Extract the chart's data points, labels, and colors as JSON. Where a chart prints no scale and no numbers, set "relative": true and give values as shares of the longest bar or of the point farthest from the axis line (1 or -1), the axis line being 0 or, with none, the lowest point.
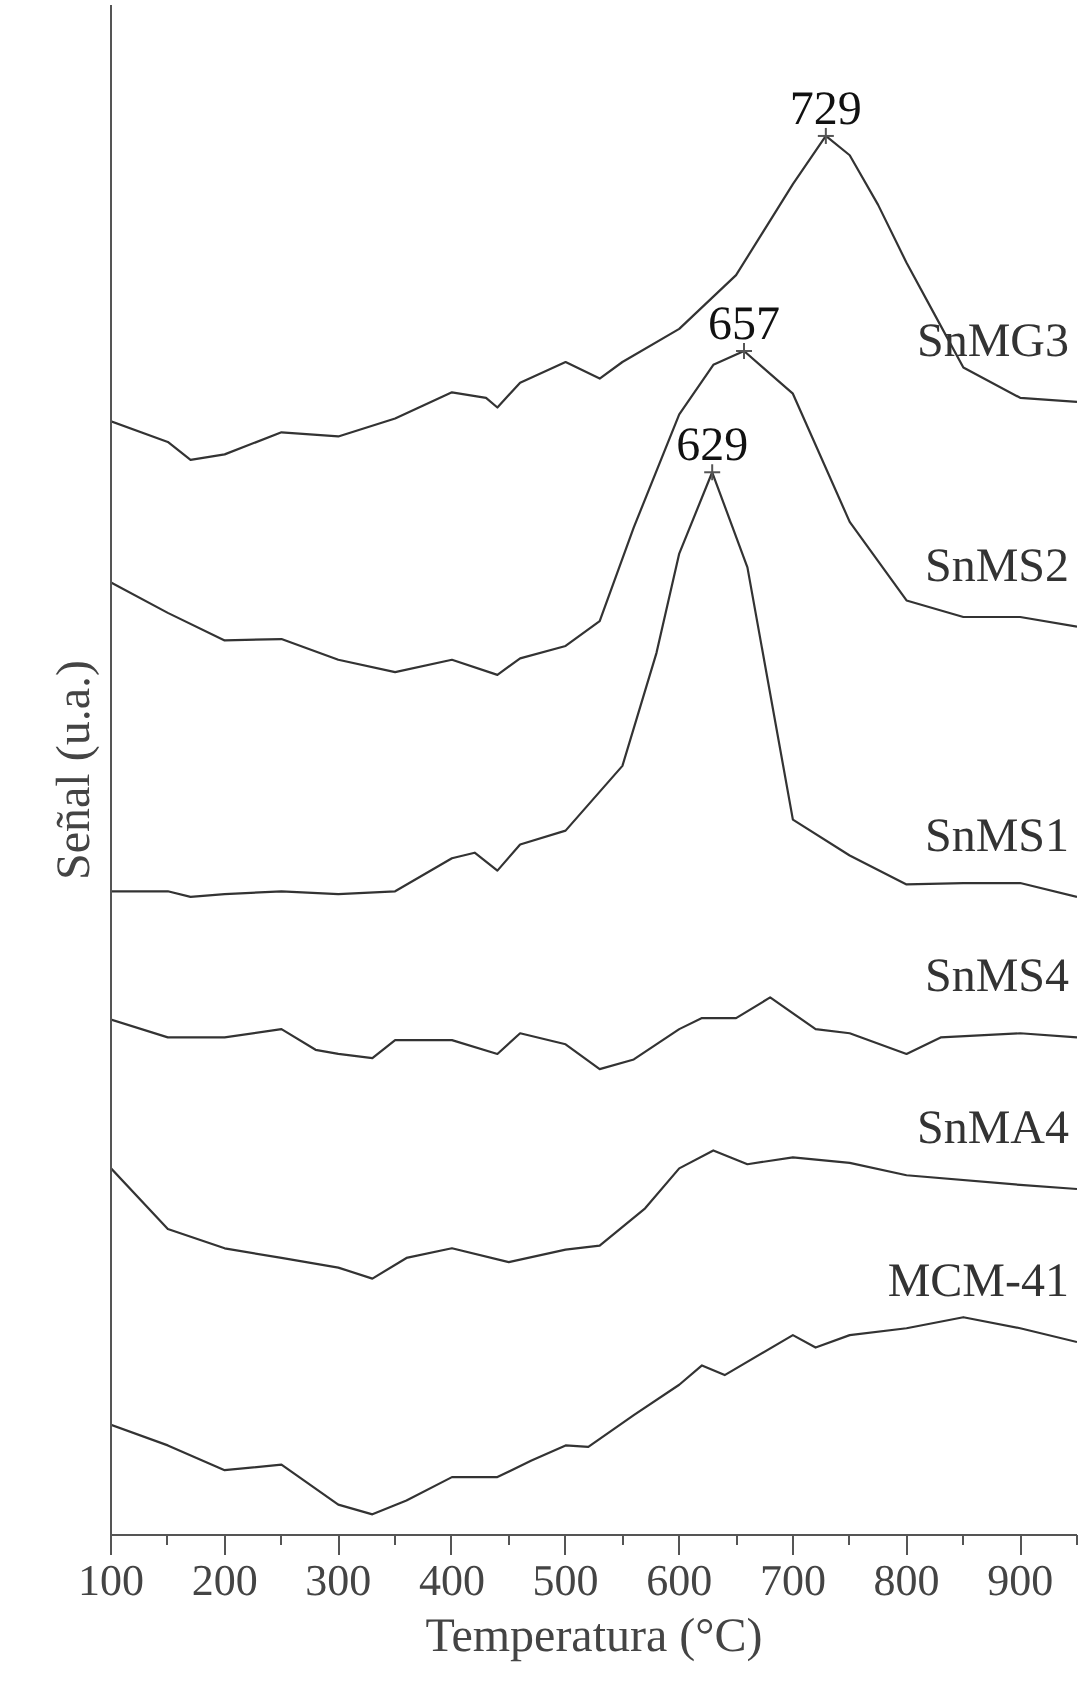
{
  "chart_data": {
    "type": "line",
    "relative": true,
    "xlabel": "Temperatura (°C)",
    "ylabel": "Señal (u.a.)",
    "xlim": [
      100,
      950
    ],
    "xticks": [
      100,
      200,
      300,
      400,
      500,
      600,
      700,
      800,
      900
    ],
    "grid": false,
    "legend": false,
    "line_style": "solid",
    "marker": "none",
    "series": [
      {
        "name": "SnMG3",
        "color": "#333333",
        "x": [
          100,
          150,
          170,
          200,
          250,
          300,
          350,
          400,
          430,
          440,
          460,
          500,
          530,
          550,
          600,
          650,
          700,
          729,
          750,
          775,
          800,
          825,
          850,
          900,
          950
        ],
        "values": [
          0.793,
          0.778,
          0.765,
          0.769,
          0.785,
          0.782,
          0.795,
          0.814,
          0.81,
          0.803,
          0.821,
          0.836,
          0.824,
          0.836,
          0.86,
          0.899,
          0.965,
          1.0,
          0.986,
          0.95,
          0.908,
          0.87,
          0.832,
          0.81,
          0.807
        ]
      },
      {
        "name": "SnMS2",
        "color": "#333333",
        "x": [
          100,
          150,
          200,
          250,
          300,
          350,
          400,
          440,
          460,
          500,
          530,
          560,
          600,
          630,
          657,
          700,
          750,
          800,
          850,
          900,
          950
        ],
        "values": [
          0.676,
          0.654,
          0.634,
          0.635,
          0.62,
          0.611,
          0.62,
          0.609,
          0.621,
          0.63,
          0.648,
          0.716,
          0.798,
          0.834,
          0.844,
          0.813,
          0.72,
          0.663,
          0.651,
          0.651,
          0.644
        ]
      },
      {
        "name": "SnMS1",
        "color": "#333333",
        "x": [
          100,
          150,
          170,
          200,
          250,
          300,
          350,
          400,
          420,
          440,
          460,
          500,
          550,
          580,
          600,
          629,
          660,
          700,
          750,
          800,
          850,
          900,
          950
        ],
        "values": [
          0.452,
          0.452,
          0.448,
          0.45,
          0.452,
          0.45,
          0.452,
          0.476,
          0.48,
          0.467,
          0.486,
          0.496,
          0.543,
          0.625,
          0.697,
          0.756,
          0.687,
          0.504,
          0.478,
          0.457,
          0.458,
          0.458,
          0.448
        ]
      },
      {
        "name": "SnMS4",
        "color": "#333333",
        "x": [
          100,
          150,
          200,
          250,
          280,
          300,
          330,
          350,
          400,
          440,
          460,
          500,
          530,
          560,
          600,
          620,
          650,
          680,
          720,
          750,
          800,
          830,
          900,
          950
        ],
        "values": [
          0.359,
          0.346,
          0.346,
          0.352,
          0.337,
          0.334,
          0.331,
          0.344,
          0.344,
          0.334,
          0.349,
          0.341,
          0.323,
          0.33,
          0.352,
          0.36,
          0.36,
          0.375,
          0.352,
          0.349,
          0.334,
          0.346,
          0.349,
          0.346
        ]
      },
      {
        "name": "SnMA4",
        "color": "#333333",
        "x": [
          100,
          150,
          200,
          250,
          300,
          330,
          360,
          400,
          450,
          500,
          530,
          570,
          600,
          630,
          660,
          700,
          750,
          800,
          900,
          950
        ],
        "values": [
          0.251,
          0.207,
          0.193,
          0.186,
          0.179,
          0.171,
          0.186,
          0.193,
          0.183,
          0.192,
          0.195,
          0.222,
          0.251,
          0.264,
          0.254,
          0.259,
          0.255,
          0.246,
          0.239,
          0.236
        ]
      },
      {
        "name": "MCM-41",
        "color": "#333333",
        "x": [
          100,
          150,
          200,
          250,
          300,
          330,
          360,
          400,
          440,
          470,
          500,
          520,
          560,
          600,
          620,
          640,
          700,
          720,
          750,
          800,
          850,
          900,
          950
        ],
        "values": [
          0.065,
          0.05,
          0.032,
          0.036,
          0.007,
          0.0,
          0.01,
          0.027,
          0.027,
          0.039,
          0.05,
          0.049,
          0.072,
          0.094,
          0.108,
          0.101,
          0.13,
          0.121,
          0.13,
          0.135,
          0.143,
          0.135,
          0.125
        ]
      }
    ],
    "annotations": [
      {
        "text": "729",
        "x": 729,
        "y": 1.0
      },
      {
        "text": "657",
        "x": 657,
        "y": 0.844
      },
      {
        "text": "629",
        "x": 629,
        "y": 0.756
      }
    ]
  }
}
